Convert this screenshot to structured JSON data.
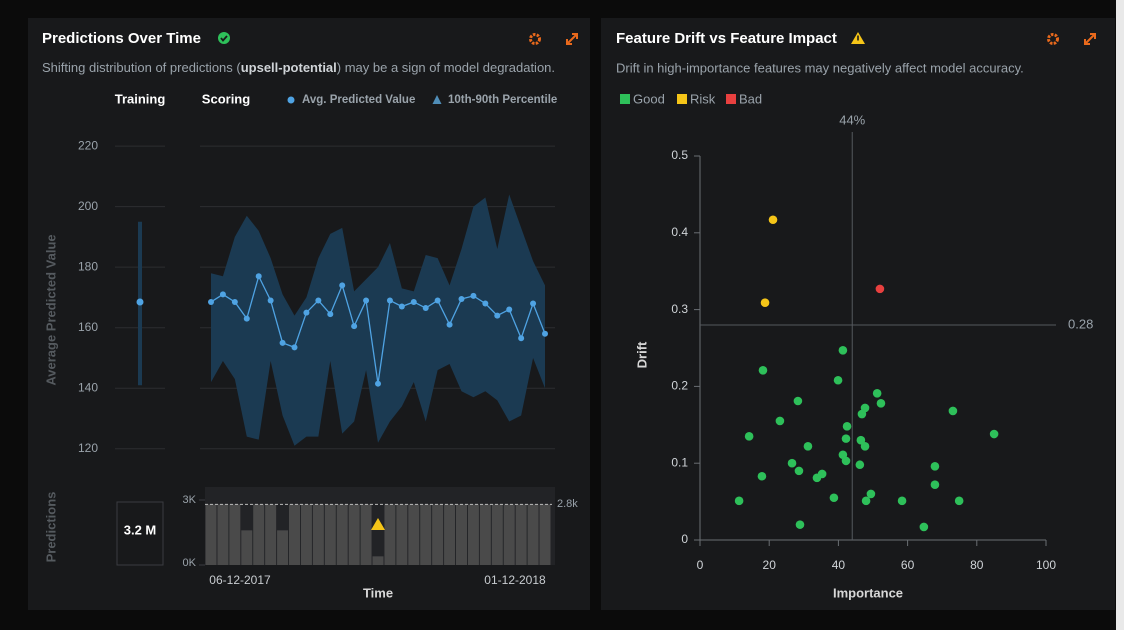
{
  "chart_data": [
    {
      "type": "line",
      "title": "Predictions Over Time",
      "subtitle": [
        "Shifting distribution of predictions (",
        "upsell-potential",
        ") may be a sign of model degradation."
      ],
      "ylabel": "Average Predicted Value",
      "training_label": "Training",
      "scoring_label": "Scoring",
      "ylim": [
        111,
        224
      ],
      "yticks": [
        120,
        140,
        160,
        180,
        200,
        220
      ],
      "grid": true,
      "training": {
        "value": 168.5,
        "low": 141,
        "high": 195
      },
      "series": [
        {
          "name": "Avg. Predicted Value",
          "color": "#4fa3e3",
          "values": [
            168.5,
            171,
            168.5,
            163,
            177,
            169,
            155,
            153.5,
            165,
            169,
            164.5,
            174,
            160.5,
            169,
            141.5,
            169,
            167,
            168.5,
            166.5,
            169,
            161,
            169.5,
            170.5,
            168,
            164,
            166,
            156.5,
            168,
            158
          ]
        },
        {
          "name": "10th-90th Percentile",
          "color": "#1b3a52",
          "high": [
            178,
            177,
            190,
            197,
            192,
            183,
            171,
            164,
            170,
            183,
            191,
            193,
            172,
            176,
            180,
            188,
            173,
            172,
            184,
            183,
            174,
            186,
            200,
            203,
            186,
            204,
            193,
            182,
            174
          ],
          "low": [
            142,
            149,
            143,
            124,
            123,
            149,
            131,
            121,
            124,
            124,
            149,
            125,
            129,
            146,
            122,
            129,
            134,
            142,
            129,
            146,
            148,
            139,
            137,
            139,
            136,
            129,
            131,
            150,
            140
          ]
        }
      ]
    },
    {
      "type": "bar",
      "ylabel": "Predictions",
      "training_total": "3.2 M",
      "xlabel": "Time",
      "categories": [
        "06-12-2017",
        null,
        null,
        null,
        null,
        null,
        null,
        null,
        null,
        null,
        null,
        null,
        null,
        null,
        null,
        null,
        null,
        null,
        null,
        null,
        null,
        null,
        null,
        null,
        null,
        null,
        "01-12-2018",
        null,
        null
      ],
      "values": [
        2800,
        2800,
        2800,
        1600,
        2800,
        2800,
        1600,
        2800,
        2800,
        2800,
        2800,
        2800,
        2800,
        2800,
        400,
        2800,
        2800,
        2800,
        2800,
        2800,
        2800,
        2800,
        2800,
        2800,
        2800,
        2800,
        2800,
        2800,
        2800
      ],
      "color": "#4a4a4a",
      "ylim": [
        0,
        3300
      ],
      "yticks": [
        {
          "value": 0,
          "label": "0K"
        },
        {
          "value": 3000,
          "label": "3K"
        }
      ],
      "reference": {
        "value": 2800,
        "label": "2.8k"
      }
    },
    {
      "type": "scatter",
      "title": "Feature Drift vs Feature Impact",
      "subtitle": "Drift in high-importance features may negatively affect model accuracy.",
      "xlabel": "Importance",
      "ylabel": "Drift",
      "xlim": [
        0,
        100
      ],
      "ylim": [
        0,
        0.5
      ],
      "xticks": [
        0,
        20,
        40,
        60,
        80,
        100
      ],
      "yticks": [
        0,
        0.1,
        0.2,
        0.3,
        0.4,
        0.5
      ],
      "legend": "top-left",
      "xline": {
        "value": 44,
        "label": "44%"
      },
      "yline": {
        "value": 0.28,
        "label": "0.28"
      },
      "series": [
        {
          "name": "Good",
          "color": "#2ec05a",
          "x": [
            41.3,
            18.2,
            39.9,
            51.2,
            52.3,
            47.7,
            46.8,
            28.3,
            73.1,
            23.1,
            42.5,
            14.2,
            85,
            42.2,
            46.5,
            47.7,
            31.2,
            41.3,
            42.2,
            26.6,
            46.2,
            67.9,
            28.6,
            35.3,
            33.8,
            17.9,
            67.9,
            49.4,
            38.7,
            48,
            58.4,
            74.9,
            11.3,
            28.9,
            64.7
          ],
          "values": [
            0.247,
            0.221,
            0.208,
            0.191,
            0.178,
            0.172,
            0.164,
            0.181,
            0.168,
            0.155,
            0.148,
            0.135,
            0.138,
            0.132,
            0.13,
            0.122,
            0.122,
            0.111,
            0.103,
            0.1,
            0.098,
            0.096,
            0.09,
            0.086,
            0.081,
            0.083,
            0.072,
            0.06,
            0.055,
            0.051,
            0.051,
            0.051,
            0.051,
            0.02,
            0.017
          ]
        },
        {
          "name": "Risk",
          "color": "#f5c518",
          "x": [
            21.1,
            18.8
          ],
          "values": [
            0.417,
            0.309
          ]
        },
        {
          "name": "Bad",
          "color": "#e8403f",
          "x": [
            52
          ],
          "values": [
            0.327
          ]
        }
      ]
    }
  ]
}
